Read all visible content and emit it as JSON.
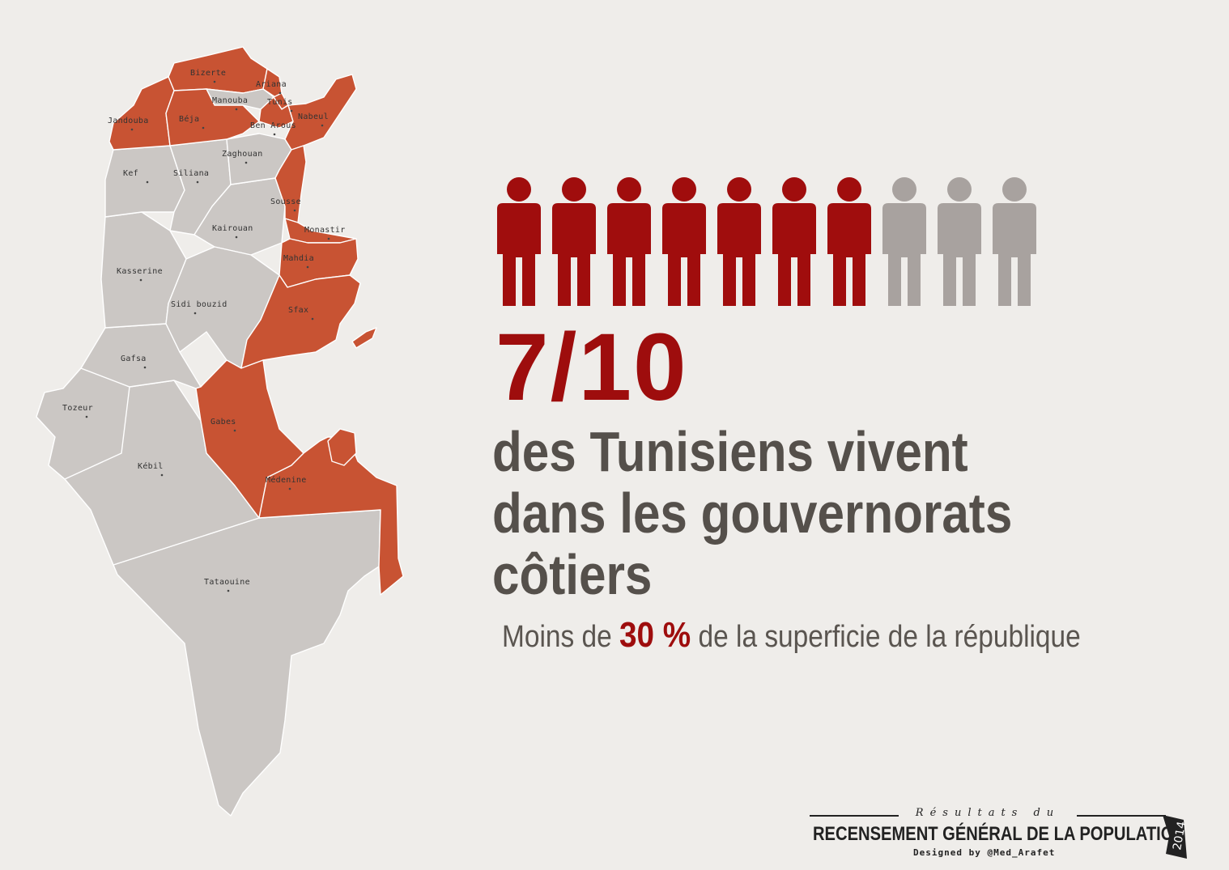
{
  "map": {
    "colors": {
      "coastal": "#c85333",
      "inland": "#cbc7c4",
      "border": "#ffffff"
    },
    "governorates": [
      {
        "id": "bizerte",
        "label": "Bizerte",
        "coastal": true
      },
      {
        "id": "ariana",
        "label": "Ariana",
        "coastal": true
      },
      {
        "id": "tunis",
        "label": "Tunis",
        "coastal": true
      },
      {
        "id": "manouba",
        "label": "Manouba",
        "coastal": false
      },
      {
        "id": "ben-arous",
        "label": "Ben Arous",
        "coastal": true
      },
      {
        "id": "nabeul",
        "label": "Nabeul",
        "coastal": true
      },
      {
        "id": "jendouba",
        "label": "Jandouba",
        "coastal": true
      },
      {
        "id": "beja",
        "label": "Béja",
        "coastal": true
      },
      {
        "id": "zaghouan",
        "label": "Zaghouan",
        "coastal": false
      },
      {
        "id": "kef",
        "label": "Kef",
        "coastal": false
      },
      {
        "id": "siliana",
        "label": "Siliana",
        "coastal": false
      },
      {
        "id": "sousse",
        "label": "Sousse",
        "coastal": true
      },
      {
        "id": "kairouan",
        "label": "Kairouan",
        "coastal": false
      },
      {
        "id": "monastir",
        "label": "Monastir",
        "coastal": true
      },
      {
        "id": "kasserine",
        "label": "Kasserine",
        "coastal": false
      },
      {
        "id": "mahdia",
        "label": "Mahdia",
        "coastal": true
      },
      {
        "id": "sidi-bouzid",
        "label": "Sidi bouzid",
        "coastal": false
      },
      {
        "id": "sfax",
        "label": "Sfax",
        "coastal": true
      },
      {
        "id": "gafsa",
        "label": "Gafsa",
        "coastal": false
      },
      {
        "id": "tozeur",
        "label": "Tozeur",
        "coastal": false
      },
      {
        "id": "gabes",
        "label": "Gabes",
        "coastal": true
      },
      {
        "id": "kebili",
        "label": "Kébil",
        "coastal": false
      },
      {
        "id": "medenine",
        "label": "Médenine",
        "coastal": true
      },
      {
        "id": "tataouine",
        "label": "Tataouine",
        "coastal": false
      }
    ]
  },
  "pictogram": {
    "total": 10,
    "highlighted": 7,
    "colors": {
      "on": "#a00d0d",
      "off": "#a8a29f"
    }
  },
  "stat": {
    "fraction": "7/10",
    "headline_lines": [
      "des Tunisiens vivent",
      "dans les gouvernorats",
      "côtiers"
    ],
    "sub_before": "Moins de ",
    "sub_highlight": "30 %",
    "sub_after": " de la superficie de la république"
  },
  "footer": {
    "line1": "Résultats du",
    "line2": "RECENSEMENT GÉNÉRAL DE LA POPULATION",
    "credit": "Designed by @Med_Arafet",
    "year": "2014"
  }
}
